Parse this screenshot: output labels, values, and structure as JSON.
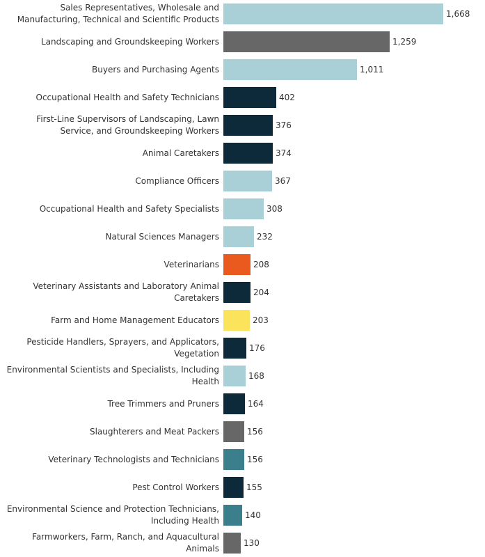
{
  "chart_data": {
    "type": "bar",
    "orientation": "horizontal",
    "title": "",
    "xlabel": "",
    "ylabel": "",
    "xlim": [
      0,
      1668
    ],
    "grid": false,
    "categories": [
      {
        "label": "Sales Representatives, Wholesale and Manufacturing, Technical and Scientific Products",
        "lines": [
          "Sales Representatives, Wholesale and",
          "Manufacturing, Technical and Scientific Products"
        ],
        "value": 1668,
        "display": "1,668",
        "color": "#a9d0d6"
      },
      {
        "label": "Landscaping and Groundskeeping Workers",
        "lines": [
          "Landscaping and Groundskeeping Workers"
        ],
        "value": 1259,
        "display": "1,259",
        "color": "#676767"
      },
      {
        "label": "Buyers and Purchasing Agents",
        "lines": [
          "Buyers and Purchasing Agents"
        ],
        "value": 1011,
        "display": "1,011",
        "color": "#a9d0d6"
      },
      {
        "label": "Occupational Health and Safety Technicians",
        "lines": [
          "Occupational Health and Safety Technicians"
        ],
        "value": 402,
        "display": "402",
        "color": "#0d2a3a"
      },
      {
        "label": "First-Line Supervisors of Landscaping, Lawn Service, and Groundskeeping Workers",
        "lines": [
          "First-Line Supervisors of Landscaping, Lawn",
          "Service, and Groundskeeping Workers"
        ],
        "value": 376,
        "display": "376",
        "color": "#0d2a3a"
      },
      {
        "label": "Animal Caretakers",
        "lines": [
          "Animal Caretakers"
        ],
        "value": 374,
        "display": "374",
        "color": "#0d2a3a"
      },
      {
        "label": "Compliance Officers",
        "lines": [
          "Compliance Officers"
        ],
        "value": 367,
        "display": "367",
        "color": "#a9d0d6"
      },
      {
        "label": "Occupational Health and Safety Specialists",
        "lines": [
          "Occupational Health and Safety Specialists"
        ],
        "value": 308,
        "display": "308",
        "color": "#a9d0d6"
      },
      {
        "label": "Natural Sciences Managers",
        "lines": [
          "Natural Sciences Managers"
        ],
        "value": 232,
        "display": "232",
        "color": "#a9d0d6"
      },
      {
        "label": "Veterinarians",
        "lines": [
          "Veterinarians"
        ],
        "value": 208,
        "display": "208",
        "color": "#ea5a1e"
      },
      {
        "label": "Veterinary Assistants and Laboratory Animal Caretakers",
        "lines": [
          "Veterinary Assistants and Laboratory Animal",
          "Caretakers"
        ],
        "value": 204,
        "display": "204",
        "color": "#0d2a3a"
      },
      {
        "label": "Farm and Home Management Educators",
        "lines": [
          "Farm and Home Management Educators"
        ],
        "value": 203,
        "display": "203",
        "color": "#fbe35b"
      },
      {
        "label": "Pesticide Handlers, Sprayers, and Applicators, Vegetation",
        "lines": [
          "Pesticide Handlers, Sprayers, and Applicators,",
          "Vegetation"
        ],
        "value": 176,
        "display": "176",
        "color": "#0d2a3a"
      },
      {
        "label": "Environmental Scientists and Specialists, Including Health",
        "lines": [
          "Environmental Scientists and Specialists, Including",
          "Health"
        ],
        "value": 168,
        "display": "168",
        "color": "#a9d0d6"
      },
      {
        "label": "Tree Trimmers and Pruners",
        "lines": [
          "Tree Trimmers and Pruners"
        ],
        "value": 164,
        "display": "164",
        "color": "#0d2a3a"
      },
      {
        "label": "Slaughterers and Meat Packers",
        "lines": [
          "Slaughterers and Meat Packers"
        ],
        "value": 156,
        "display": "156",
        "color": "#676767"
      },
      {
        "label": "Veterinary Technologists and Technicians",
        "lines": [
          "Veterinary Technologists and Technicians"
        ],
        "value": 156,
        "display": "156",
        "color": "#3b7f8c"
      },
      {
        "label": "Pest Control Workers",
        "lines": [
          "Pest Control Workers"
        ],
        "value": 155,
        "display": "155",
        "color": "#0d2a3a"
      },
      {
        "label": "Environmental Science and Protection Technicians, Including Health",
        "lines": [
          "Environmental Science and Protection Technicians,",
          "Including Health"
        ],
        "value": 140,
        "display": "140",
        "color": "#3b7f8c"
      },
      {
        "label": "Farmworkers, Farm, Ranch, and Aquacultural Animals",
        "lines": [
          "Farmworkers, Farm, Ranch, and Aquacultural",
          "Animals"
        ],
        "value": 130,
        "display": "130",
        "color": "#676767"
      }
    ]
  }
}
